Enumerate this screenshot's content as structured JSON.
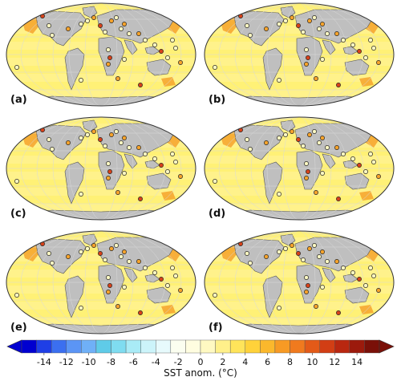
{
  "panels": [
    {
      "label": "(a)"
    },
    {
      "label": "(b)"
    },
    {
      "label": "(c)"
    },
    {
      "label": "(d)"
    },
    {
      "label": "(e)"
    },
    {
      "label": "(f)"
    }
  ],
  "colorbar": {
    "title": "SST anom. (°C)",
    "ticks": [
      "-14",
      "-12",
      "-10",
      "-8",
      "-6",
      "-4",
      "-2",
      "0",
      "2",
      "4",
      "6",
      "8",
      "10",
      "12",
      "14"
    ],
    "colors": [
      "#0000d0",
      "#1f3fe6",
      "#3b6ff0",
      "#5b95f5",
      "#6fb0f7",
      "#5fcbe8",
      "#7fdcf0",
      "#a9ebf6",
      "#ccf4fa",
      "#e7fafc",
      "#fbfef0",
      "#fffde0",
      "#fff9c2",
      "#fff08a",
      "#ffe45a",
      "#ffd23a",
      "#fbb82c",
      "#f79a24",
      "#f07a1e",
      "#e35a18",
      "#d23e14",
      "#b92710",
      "#9c1a0c",
      "#7a1008"
    ]
  },
  "colors": {
    "land": "#bfbfbf",
    "ocean": "#fff176",
    "warm": "#f6a32b",
    "hot": "#d8421a",
    "outline": "#333333"
  }
}
